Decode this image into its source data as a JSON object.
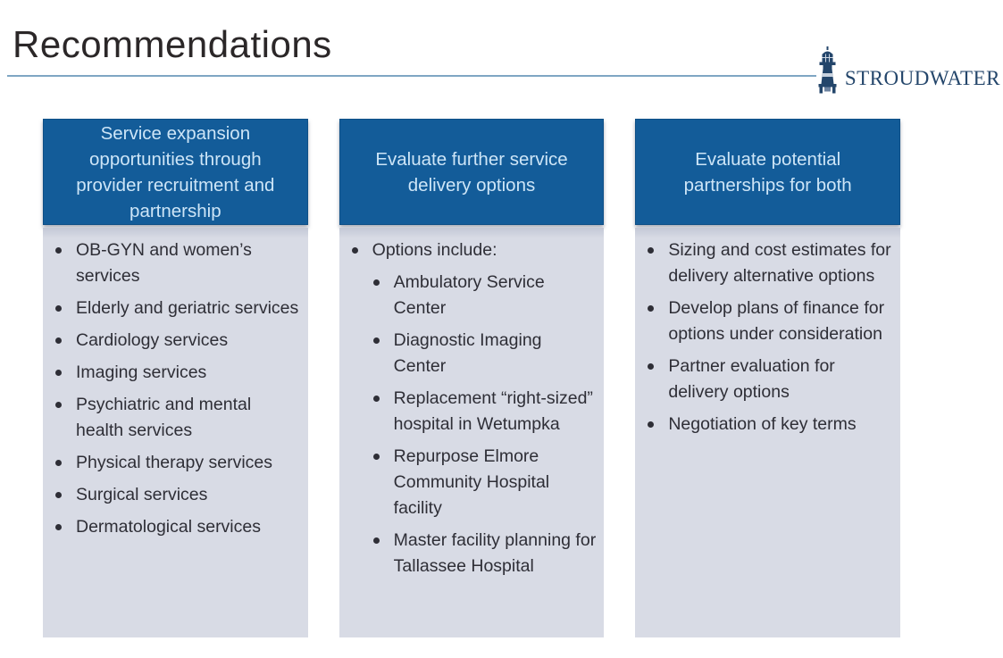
{
  "page": {
    "title": "Recommendations",
    "brand": {
      "name": "STROUDWATER",
      "logo_icon": "lighthouse-icon"
    }
  },
  "colors": {
    "header_bg": "#135C99",
    "header_text": "#CDE5F7",
    "body_bg": "#D8DBE5",
    "body_text": "#2E2E36",
    "title_text": "#2B2728",
    "divider": "#7FA6C3",
    "brand_navy": "#24466B"
  },
  "columns": [
    {
      "header": "Service expansion opportunities through provider recruitment and partnership",
      "items": [
        {
          "level": 1,
          "text": "OB-GYN and women’s services"
        },
        {
          "level": 1,
          "text": "Elderly and geriatric services"
        },
        {
          "level": 1,
          "text": "Cardiology services"
        },
        {
          "level": 1,
          "text": "Imaging services"
        },
        {
          "level": 1,
          "text": "Psychiatric and mental health services"
        },
        {
          "level": 1,
          "text": "Physical therapy services"
        },
        {
          "level": 1,
          "text": "Surgical services"
        },
        {
          "level": 1,
          "text": "Dermatological services"
        }
      ]
    },
    {
      "header": "Evaluate further service delivery options",
      "items": [
        {
          "level": 1,
          "text": "Options include:"
        },
        {
          "level": 2,
          "text": "Ambulatory Service Center"
        },
        {
          "level": 2,
          "text": "Diagnostic Imaging Center"
        },
        {
          "level": 2,
          "text": "Replacement “right-sized” hospital in Wetumpka"
        },
        {
          "level": 2,
          "text": "Repurpose Elmore Community Hospital facility"
        },
        {
          "level": 2,
          "text": "Master facility planning for Tallassee Hospital"
        }
      ]
    },
    {
      "header": "Evaluate potential partnerships for both",
      "items": [
        {
          "level": 1,
          "text": "Sizing and cost estimates for delivery alternative options"
        },
        {
          "level": 1,
          "text": "Develop plans of finance for options under consideration"
        },
        {
          "level": 1,
          "text": "Partner evaluation for delivery options"
        },
        {
          "level": 1,
          "text": "Negotiation of key terms"
        }
      ]
    }
  ]
}
